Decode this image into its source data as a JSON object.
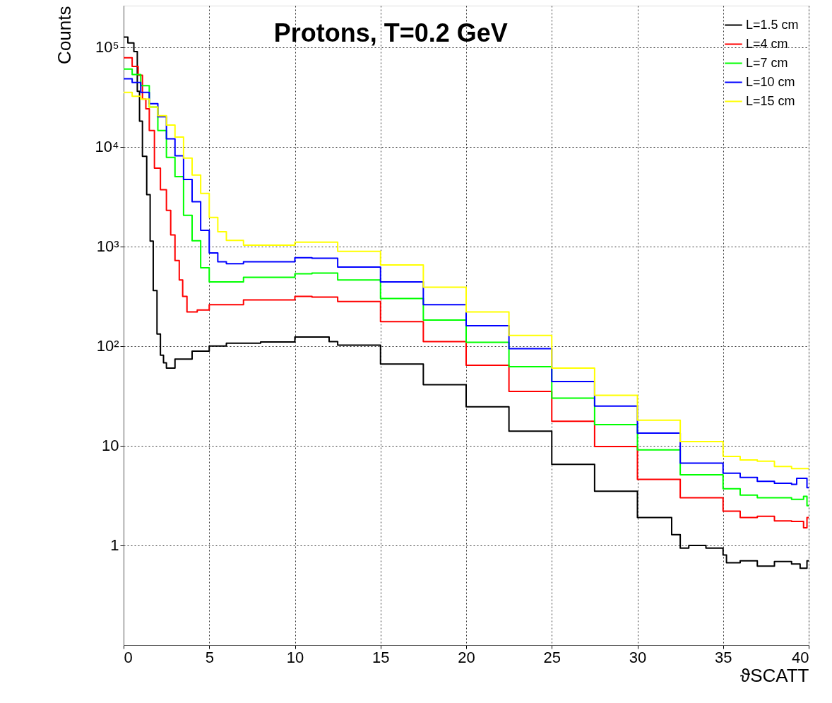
{
  "chart_data": {
    "type": "step",
    "title": "Protons, T=0.2 GeV",
    "xlabel": "ϑSCATT",
    "ylabel": "Counts",
    "log": true,
    "grid": true,
    "legend": "top right",
    "xlim": [
      0,
      40
    ],
    "xticks": [
      0,
      5,
      10,
      15,
      20,
      25,
      30,
      35,
      40
    ],
    "ylim": [
      0.1,
      260000
    ],
    "yticks": [
      {
        "value": 1,
        "label": "1"
      },
      {
        "value": 10,
        "label": "10"
      },
      {
        "value": 100,
        "label": "10²"
      },
      {
        "value": 1000,
        "label": "10³"
      },
      {
        "value": 10000,
        "label": "10⁴"
      },
      {
        "value": 100000,
        "label": "10⁵"
      }
    ],
    "series": [
      {
        "name": "L=1.5 cm",
        "color": "#000000",
        "x": [
          0,
          0.25,
          0.6,
          0.8,
          0.93,
          1.1,
          1.35,
          1.55,
          1.73,
          1.95,
          2.15,
          2.33,
          2.5,
          3,
          4,
          5,
          6,
          8,
          10,
          11,
          12,
          12.5,
          13,
          15,
          17.5,
          20,
          22.5,
          25,
          27.5,
          30,
          32,
          32.5,
          33,
          34,
          35,
          35.2,
          36,
          37,
          38,
          39,
          39.5,
          39.9,
          40
        ],
        "values": [
          126000,
          110000,
          90000,
          36000,
          18000,
          8000,
          3300,
          1130,
          360,
          132,
          81,
          68,
          60,
          74,
          89,
          100,
          107,
          110,
          123,
          123,
          111,
          102,
          102,
          66,
          41,
          24.6,
          14,
          6.5,
          3.5,
          1.9,
          1.28,
          0.94,
          1.0,
          0.94,
          0.8,
          0.67,
          0.7,
          0.62,
          0.69,
          0.65,
          0.59,
          0.7,
          0.7
        ]
      },
      {
        "name": "L=4 cm",
        "color": "#ff0000",
        "x": [
          0,
          0.5,
          0.85,
          1.1,
          1.3,
          1.5,
          1.8,
          2.15,
          2.5,
          2.75,
          3,
          3.25,
          3.45,
          3.7,
          4.3,
          5,
          7,
          10,
          11,
          12.5,
          15,
          17.5,
          20,
          22.5,
          25,
          27.5,
          30,
          32.5,
          35,
          36,
          37,
          38,
          39,
          39.7,
          39.9,
          40
        ],
        "values": [
          78000,
          64000,
          52000,
          30000,
          24000,
          14500,
          6100,
          3700,
          2300,
          1300,
          720,
          460,
          315,
          220,
          230,
          260,
          290,
          315,
          310,
          280,
          176,
          111,
          64,
          35,
          17.6,
          9.8,
          4.6,
          3.0,
          2.2,
          1.9,
          1.96,
          1.76,
          1.74,
          1.5,
          1.9,
          1.9
        ]
      },
      {
        "name": "L=7 cm",
        "color": "#00ff00",
        "x": [
          0,
          0.5,
          1,
          1.5,
          2,
          2.5,
          3,
          3.5,
          4,
          4.5,
          5,
          5.5,
          7,
          10,
          11,
          12.5,
          15,
          17.5,
          20,
          22.5,
          25,
          27.5,
          30,
          32.5,
          35,
          36,
          37,
          38,
          39,
          39.7,
          39.9,
          40
        ],
        "values": [
          60000,
          53000,
          41000,
          25000,
          14500,
          7800,
          5000,
          2050,
          1140,
          610,
          440,
          440,
          490,
          530,
          540,
          460,
          300,
          182,
          109,
          62,
          30,
          16.3,
          9.1,
          5.1,
          3.7,
          3.2,
          3.0,
          3.0,
          2.9,
          3.1,
          2.5,
          2.5
        ]
      },
      {
        "name": "L=10 cm",
        "color": "#0000ff",
        "x": [
          0,
          0.5,
          1,
          1.5,
          2,
          2.5,
          3,
          3.5,
          4,
          4.5,
          5,
          5.5,
          6,
          7,
          10,
          11,
          12.5,
          15,
          17.5,
          20,
          22.5,
          25,
          27.5,
          30,
          32.5,
          35,
          36,
          37,
          38,
          39,
          39.3,
          39.9,
          40
        ],
        "values": [
          48000,
          44000,
          35000,
          27000,
          20000,
          12000,
          8100,
          4700,
          2800,
          1450,
          860,
          700,
          670,
          700,
          770,
          760,
          620,
          440,
          260,
          160,
          94,
          44,
          25,
          13.4,
          6.7,
          5.3,
          4.8,
          4.4,
          4.2,
          4.1,
          4.7,
          3.8,
          3.8
        ]
      },
      {
        "name": "L=15 cm",
        "color": "#ffff00",
        "x": [
          0,
          0.5,
          1,
          1.5,
          2,
          2.5,
          3,
          3.5,
          4,
          4.5,
          5,
          5.5,
          6,
          7,
          10,
          11,
          12.5,
          15,
          17.5,
          20,
          22.5,
          25,
          27.5,
          30,
          32.5,
          35,
          36,
          37,
          38,
          39,
          39.9,
          40
        ],
        "values": [
          35000,
          32000,
          30000,
          25000,
          20500,
          16500,
          12500,
          7700,
          5200,
          3400,
          1950,
          1400,
          1150,
          1030,
          1100,
          1100,
          890,
          650,
          390,
          220,
          128,
          60,
          32,
          18,
          11,
          7.8,
          7.2,
          7.0,
          6.2,
          5.9,
          5.9,
          5.9
        ]
      }
    ]
  }
}
